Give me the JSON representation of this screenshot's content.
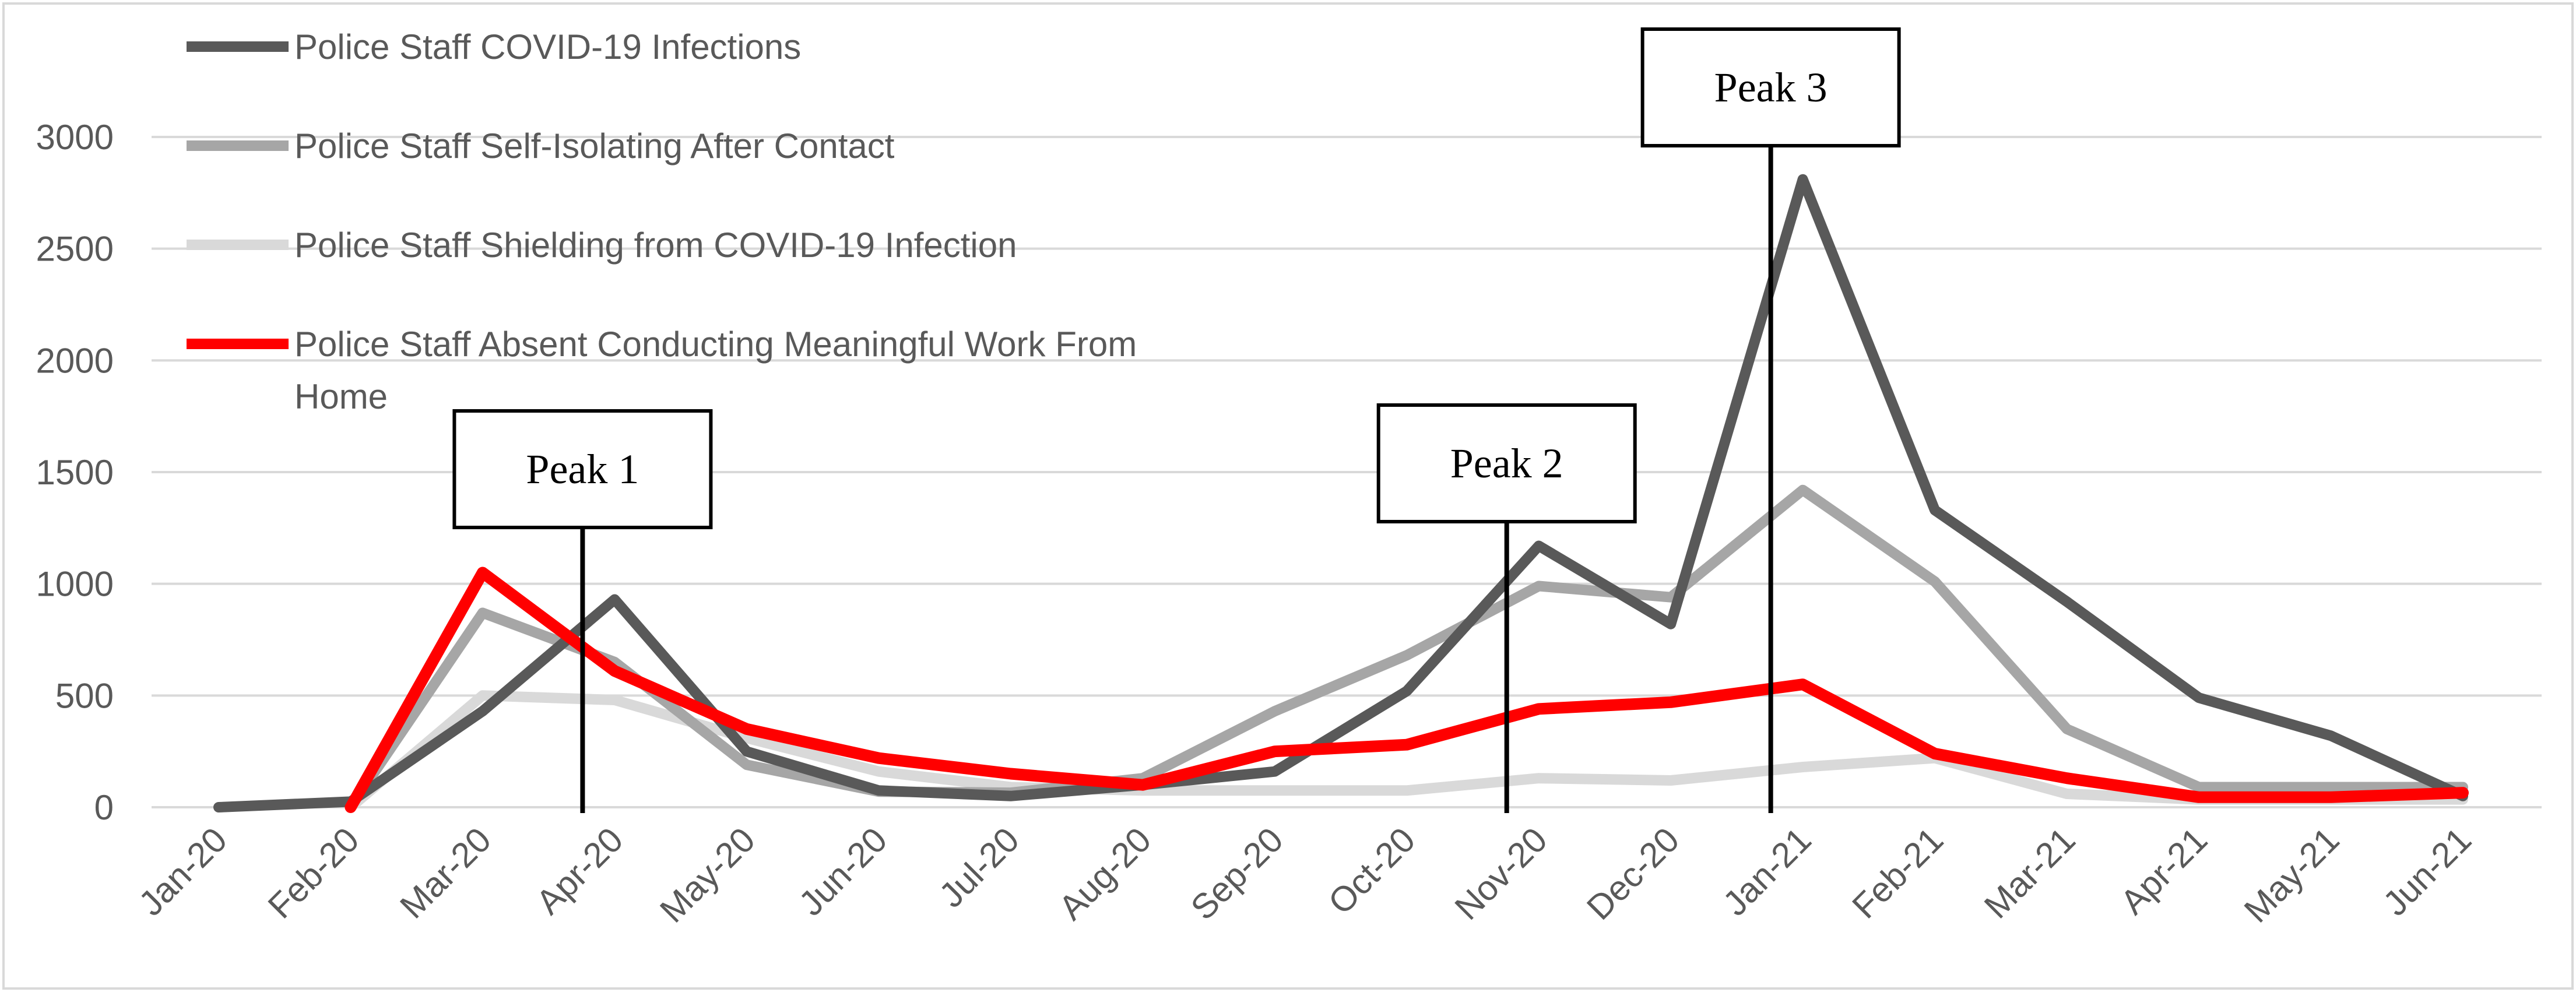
{
  "chart_data": {
    "type": "line",
    "title": "",
    "xlabel": "",
    "ylabel": "",
    "ylim": [
      0,
      3000
    ],
    "yticks": [
      0,
      500,
      1000,
      1500,
      2000,
      2500,
      3000
    ],
    "ytick_labels": [
      "0",
      "500",
      "1000",
      "1500",
      "2000",
      "2500",
      "3000"
    ],
    "grid": true,
    "legend_position": "top-left",
    "categories": [
      "Jan-20",
      "Feb-20",
      "Mar-20",
      "Apr-20",
      "May-20",
      "Jun-20",
      "Jul-20",
      "Aug-20",
      "Sep-20",
      "Oct-20",
      "Nov-20",
      "Dec-20",
      "Jan-21",
      "Feb-21",
      "Mar-21",
      "Apr-21",
      "May-21",
      "Jun-21"
    ],
    "series": [
      {
        "name": "Police Staff COVID-19 Infections",
        "color": "#595959",
        "values": [
          0,
          25,
          430,
          930,
          250,
          75,
          50,
          100,
          160,
          520,
          1170,
          820,
          2810,
          1330,
          920,
          490,
          320,
          50
        ]
      },
      {
        "name": "Police Staff Self-Isolating After Contact",
        "color": "#a6a6a6",
        "values": [
          null,
          0,
          870,
          650,
          190,
          70,
          65,
          130,
          430,
          680,
          990,
          940,
          1420,
          1010,
          350,
          90,
          90,
          90
        ]
      },
      {
        "name": "Police Staff Shielding from COVID-19 Infection",
        "color": "#d9d9d9",
        "values": [
          null,
          0,
          500,
          480,
          310,
          160,
          90,
          75,
          75,
          75,
          130,
          120,
          180,
          220,
          60,
          35,
          35,
          35
        ]
      },
      {
        "name": "Police Staff Absent Conducting Meaningful Work From Home",
        "color": "#ff0000",
        "values": [
          null,
          0,
          1050,
          610,
          350,
          220,
          150,
          100,
          250,
          280,
          440,
          470,
          550,
          240,
          130,
          45,
          45,
          65
        ]
      }
    ],
    "annotations": [
      {
        "label": "Peak 1",
        "category_index": 3
      },
      {
        "label": "Peak 2",
        "category_index": 10
      },
      {
        "label": "Peak 3",
        "category_index": 12
      }
    ]
  }
}
